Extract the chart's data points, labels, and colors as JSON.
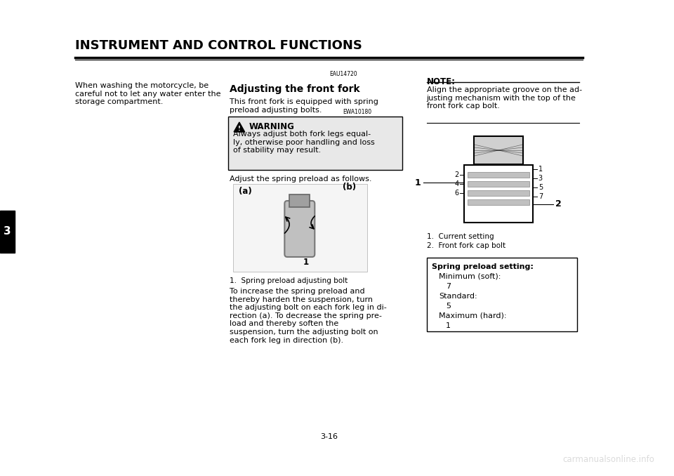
{
  "bg_color": "#ffffff",
  "title": "INSTRUMENT AND CONTROL FUNCTIONS",
  "title_fontsize": 13,
  "page_number": "3-16",
  "chapter_number": "3",
  "watermark": "carmanualsonline.info",
  "left_text": "When washing the motorcycle, be\ncareful not to let any water enter the\nstorage compartment.",
  "section_code1": "EAU14720",
  "section_title": "Adjusting the front fork",
  "section_body": "This front fork is equipped with spring\npreload adjusting bolts.",
  "section_code2": "EWA10180",
  "warning_title": "WARNING",
  "warning_text": "Always adjust both fork legs equal-\nly, otherwise poor handling and loss\nof stability may result.",
  "adjust_text": "Adjust the spring preload as follows.",
  "caption1": "1.  Spring preload adjusting bolt",
  "to_increase_text": "To increase the spring preload and\nthereby harden the suspension, turn\nthe adjusting bolt on each fork leg in di-\nrection (a). To decrease the spring pre-\nload and thereby soften the\nsuspension, turn the adjusting bolt on\neach fork leg in direction (b).",
  "note_title": "NOTE:",
  "note_text": "Align the appropriate groove on the ad-\njusting mechanism with the top of the\nfront fork cap bolt.",
  "label1_current": "1.  Current setting",
  "label2_fork": "2.  Front fork cap bolt",
  "spring_box_title": "Spring preload setting:",
  "spring_min_label": "Minimum (soft):",
  "spring_min_val": "7",
  "spring_std_label": "Standard:",
  "spring_std_val": "5",
  "spring_max_label": "Maximum (hard):",
  "spring_max_val": "1",
  "groove_numbers_left": [
    "2",
    "4",
    "6"
  ],
  "groove_numbers_right": [
    "1",
    "3",
    "5",
    "7"
  ]
}
